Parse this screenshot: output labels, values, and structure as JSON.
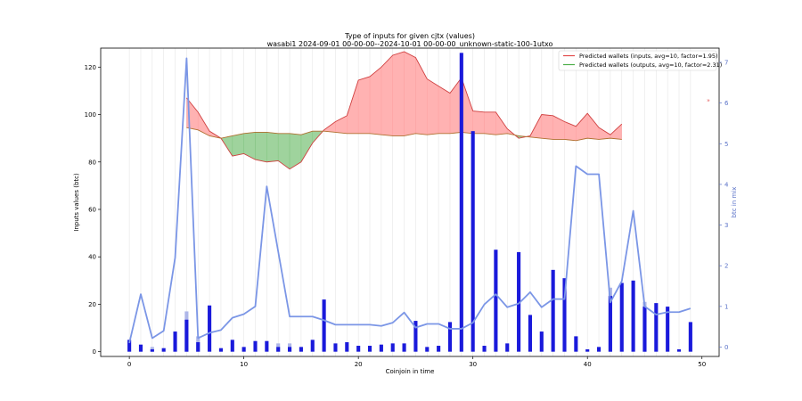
{
  "chart_data": {
    "type": "bar",
    "title": "Type of inputs for given cjtx (values)",
    "subtitle": "wasabi1 2024-09-01 00-00-00--2024-10-01 00-00-00_unknown-static-100-1utxo",
    "xlabel": "Coinjoin in time",
    "ylabel": "Inputs values (btc)",
    "y2label": "btc in mix",
    "xlim": [
      -2.5,
      51.5
    ],
    "ylim": [
      -2,
      128
    ],
    "y2lim": [
      -0.23,
      7.35
    ],
    "x_ticks": [
      0,
      10,
      20,
      30,
      40,
      50
    ],
    "y_ticks": [
      0,
      20,
      40,
      60,
      80,
      100,
      120
    ],
    "y2_ticks": [
      0,
      1,
      2,
      3,
      4,
      5,
      6,
      7
    ],
    "grid": "vertical-per-coinjoin",
    "legend_position": "top-right",
    "legend": [
      {
        "label": "Predicted wallets (inputs, avg=10, factor=1.95)",
        "color": "#e24a4a"
      },
      {
        "label": "Predicted wallets (outputs, avg=10, factor=2.31)",
        "color": "#4daf4a"
      }
    ],
    "right_marker": {
      "label": "»",
      "y": 106
    },
    "bars": {
      "x": [
        0,
        1,
        2,
        3,
        4,
        5,
        6,
        7,
        8,
        9,
        10,
        11,
        12,
        13,
        14,
        15,
        16,
        17,
        18,
        19,
        20,
        21,
        22,
        23,
        24,
        25,
        26,
        27,
        28,
        29,
        30,
        31,
        32,
        33,
        34,
        35,
        36,
        37,
        38,
        39,
        40,
        41,
        42,
        43,
        44,
        45,
        46,
        47,
        48,
        49
      ],
      "values": [
        5,
        3,
        1,
        1.5,
        8.5,
        13.5,
        4,
        19.5,
        1.5,
        5,
        2,
        4.5,
        4.5,
        2,
        2,
        2,
        5,
        22,
        3.5,
        4,
        2.5,
        2.5,
        3,
        3.5,
        3.5,
        13,
        2,
        2.5,
        12.5,
        126,
        93,
        2.5,
        43,
        3.5,
        42,
        15.5,
        8.5,
        34.5,
        31,
        6.5,
        1,
        2,
        23.5,
        29,
        30,
        19,
        20.5,
        19,
        1,
        12.5
      ],
      "color": "#1a1adb"
    },
    "light_bars": {
      "x": [
        2,
        5,
        6,
        13,
        14,
        42,
        45
      ],
      "values": [
        2,
        17,
        6.5,
        3.5,
        3.5,
        27,
        21
      ],
      "color": "#aeb6e8"
    },
    "btc_in_mix": {
      "x": [
        0,
        1,
        2,
        3,
        4,
        5,
        6,
        7,
        8,
        9,
        10,
        11,
        12,
        13,
        14,
        15,
        16,
        17,
        18,
        19,
        20,
        21,
        22,
        23,
        24,
        25,
        26,
        27,
        28,
        29,
        30,
        31,
        32,
        33,
        34,
        35,
        36,
        37,
        38,
        39,
        40,
        41,
        42,
        43,
        44,
        45,
        46,
        47,
        48,
        49
      ],
      "values": [
        0.1,
        1.3,
        0.22,
        0.4,
        2.2,
        7.1,
        0.22,
        0.35,
        0.42,
        0.72,
        0.81,
        1.0,
        3.95,
        2.35,
        0.75,
        0.75,
        0.75,
        0.66,
        0.55,
        0.55,
        0.55,
        0.55,
        0.52,
        0.6,
        0.85,
        0.48,
        0.57,
        0.57,
        0.45,
        0.45,
        0.6,
        1.05,
        1.3,
        0.98,
        1.07,
        1.35,
        0.98,
        1.18,
        1.18,
        4.45,
        4.25,
        4.25,
        1.1,
        1.62,
        3.35,
        1.0,
        0.8,
        0.86,
        0.86,
        0.95
      ],
      "color": "#7b96e6"
    },
    "series": [
      {
        "name": "Predicted wallets (inputs, avg=10, factor=1.95)",
        "x": [
          5,
          6,
          7,
          8,
          9,
          10,
          11,
          12,
          13,
          14,
          15,
          16,
          17,
          18,
          19,
          20,
          21,
          22,
          23,
          24,
          25,
          26,
          27,
          28,
          29,
          30,
          31,
          32,
          33,
          34,
          35,
          36,
          37,
          38,
          39,
          40,
          41,
          42,
          43
        ],
        "values": [
          107,
          101,
          93,
          90,
          82.5,
          83.5,
          81,
          80,
          80.5,
          77,
          80,
          88,
          93.5,
          97,
          99.5,
          114.5,
          116,
          120,
          125,
          126.5,
          124,
          115,
          112,
          109,
          115.5,
          101.5,
          101,
          101,
          94,
          90,
          91,
          100,
          99.5,
          97,
          95,
          100.5,
          94.5,
          91.5,
          96
        ],
        "color": "#e24a4a"
      },
      {
        "name": "Predicted wallets (outputs, avg=10, factor=2.31)",
        "x": [
          5,
          6,
          7,
          8,
          9,
          10,
          11,
          12,
          13,
          14,
          15,
          16,
          17,
          18,
          19,
          20,
          21,
          22,
          23,
          24,
          25,
          26,
          27,
          28,
          29,
          30,
          31,
          32,
          33,
          34,
          35,
          36,
          37,
          38,
          39,
          40,
          41,
          42,
          43
        ],
        "values": [
          94.5,
          93.5,
          91,
          90,
          91,
          92,
          92.5,
          92.5,
          92,
          92,
          91.5,
          93,
          93,
          92.5,
          92,
          92,
          92,
          91.5,
          91,
          91,
          92,
          91.5,
          92,
          92,
          92.5,
          92,
          92,
          91.5,
          92,
          91,
          90.5,
          90,
          89.5,
          89.5,
          89,
          90,
          89.5,
          90,
          89.5
        ],
        "color": "#4daf4a"
      }
    ]
  }
}
